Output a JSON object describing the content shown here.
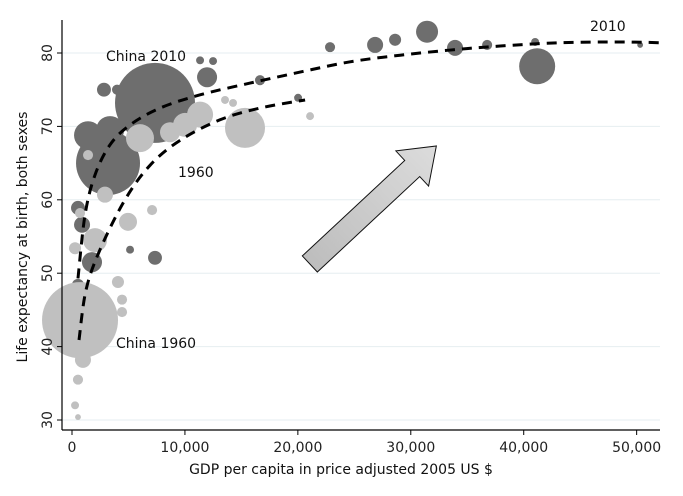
{
  "chart_data": {
    "type": "scatter",
    "title": "",
    "xlabel": "GDP per capita in price adjusted 2005 US $",
    "ylabel": "Life expectancy at birth, both sexes",
    "xlim": [
      -1000,
      52000
    ],
    "ylim": [
      28.5,
      85
    ],
    "xticks": [
      0,
      10000,
      20000,
      30000,
      40000,
      50000
    ],
    "xtick_labels": [
      "0",
      "10,000",
      "20,000",
      "30,000",
      "40,000",
      "50,000"
    ],
    "yticks": [
      30,
      40,
      50,
      60,
      70,
      80
    ],
    "ytick_labels": [
      "30",
      "40",
      "50",
      "60",
      "70",
      "80"
    ],
    "grid": "horizontal",
    "series": [
      {
        "name": "2010",
        "color": "#6e6e6e",
        "points": [
          {
            "gdp": 7350,
            "le": 73.2,
            "pop": 1322
          },
          {
            "gdp": 3190,
            "le": 65.0,
            "pop": 846
          },
          {
            "gdp": 1420,
            "le": 68.8,
            "pop": 162
          },
          {
            "gdp": 3370,
            "le": 69.5,
            "pop": 162
          },
          {
            "gdp": 2830,
            "le": 75.0,
            "pop": 40
          },
          {
            "gdp": 3990,
            "le": 75.0,
            "pop": 21
          },
          {
            "gdp": 11960,
            "le": 76.7,
            "pop": 83
          },
          {
            "gdp": 11340,
            "le": 79.0,
            "pop": 13
          },
          {
            "gdp": 12490,
            "le": 78.9,
            "pop": 13
          },
          {
            "gdp": 16650,
            "le": 76.3,
            "pop": 21
          },
          {
            "gdp": 20020,
            "le": 73.9,
            "pop": 13
          },
          {
            "gdp": 530,
            "le": 58.9,
            "pop": 40
          },
          {
            "gdp": 890,
            "le": 56.6,
            "pop": 53
          },
          {
            "gdp": 1770,
            "le": 51.5,
            "pop": 83
          },
          {
            "gdp": 7350,
            "le": 52.1,
            "pop": 40
          },
          {
            "gdp": 5140,
            "le": 53.2,
            "pop": 13
          },
          {
            "gdp": 26840,
            "le": 81.1,
            "pop": 53
          },
          {
            "gdp": 28610,
            "le": 81.8,
            "pop": 30
          },
          {
            "gdp": 31440,
            "le": 82.9,
            "pop": 100
          },
          {
            "gdp": 33920,
            "le": 80.7,
            "pop": 53
          },
          {
            "gdp": 36760,
            "le": 81.1,
            "pop": 21
          },
          {
            "gdp": 41190,
            "le": 78.2,
            "pop": 268
          },
          {
            "gdp": 41010,
            "le": 81.5,
            "pop": 13
          },
          {
            "gdp": 50310,
            "le": 81.1,
            "pop": 7
          },
          {
            "gdp": 22850,
            "le": 80.8,
            "pop": 21
          },
          {
            "gdp": 530,
            "le": 48.4,
            "pop": 30
          }
        ]
      },
      {
        "name": "1960",
        "color": "#c0c0c0",
        "points": [
          {
            "gdp": 710,
            "le": 43.6,
            "pop": 1193
          },
          {
            "gdp": 970,
            "le": 38.2,
            "pop": 53
          },
          {
            "gdp": 530,
            "le": 35.5,
            "pop": 21
          },
          {
            "gdp": 270,
            "le": 32.0,
            "pop": 13
          },
          {
            "gdp": 530,
            "le": 30.4,
            "pop": 7
          },
          {
            "gdp": 2040,
            "le": 54.5,
            "pop": 119
          },
          {
            "gdp": 4960,
            "le": 57.0,
            "pop": 67
          },
          {
            "gdp": 2920,
            "le": 60.7,
            "pop": 53
          },
          {
            "gdp": 4070,
            "le": 48.8,
            "pop": 30
          },
          {
            "gdp": 4430,
            "le": 46.4,
            "pop": 21
          },
          {
            "gdp": 4430,
            "le": 44.7,
            "pop": 21
          },
          {
            "gdp": 6020,
            "le": 68.4,
            "pop": 162
          },
          {
            "gdp": 8680,
            "le": 69.2,
            "pop": 83
          },
          {
            "gdp": 10010,
            "le": 70.2,
            "pop": 119
          },
          {
            "gdp": 11340,
            "le": 71.6,
            "pop": 140
          },
          {
            "gdp": 15320,
            "le": 69.8,
            "pop": 331
          },
          {
            "gdp": 13550,
            "le": 73.6,
            "pop": 13
          },
          {
            "gdp": 14260,
            "le": 73.2,
            "pop": 13
          },
          {
            "gdp": 21080,
            "le": 71.4,
            "pop": 13
          },
          {
            "gdp": 7090,
            "le": 58.6,
            "pop": 21
          },
          {
            "gdp": 1420,
            "le": 66.1,
            "pop": 21
          },
          {
            "gdp": 710,
            "le": 58.2,
            "pop": 21
          },
          {
            "gdp": 270,
            "le": 53.4,
            "pop": 30
          }
        ]
      }
    ],
    "fit_curves": [
      {
        "name": "2010",
        "points": [
          [
            530,
            49.3
          ],
          [
            1150,
            57.9
          ],
          [
            2040,
            63.4
          ],
          [
            3370,
            67.5
          ],
          [
            5140,
            70.2
          ],
          [
            7800,
            72.5
          ],
          [
            11340,
            74.3
          ],
          [
            15770,
            75.9
          ],
          [
            20200,
            77.4
          ],
          [
            24630,
            78.8
          ],
          [
            29060,
            79.7
          ],
          [
            33490,
            80.4
          ],
          [
            37920,
            80.95
          ],
          [
            43230,
            81.4
          ],
          [
            48540,
            81.5
          ],
          [
            52080,
            81.4
          ]
        ]
      },
      {
        "name": "1960",
        "points": [
          [
            620,
            40.9
          ],
          [
            1240,
            47.7
          ],
          [
            2480,
            53.2
          ],
          [
            4690,
            60.0
          ],
          [
            6910,
            64.7
          ],
          [
            9570,
            68.1
          ],
          [
            13110,
            70.9
          ],
          [
            16650,
            72.5
          ],
          [
            20640,
            73.6
          ]
        ]
      }
    ],
    "annotations": {
      "china_2010": "China 2010",
      "china_1960": "China 1960",
      "curve_1960": "1960",
      "curve_2010": "2010"
    }
  }
}
